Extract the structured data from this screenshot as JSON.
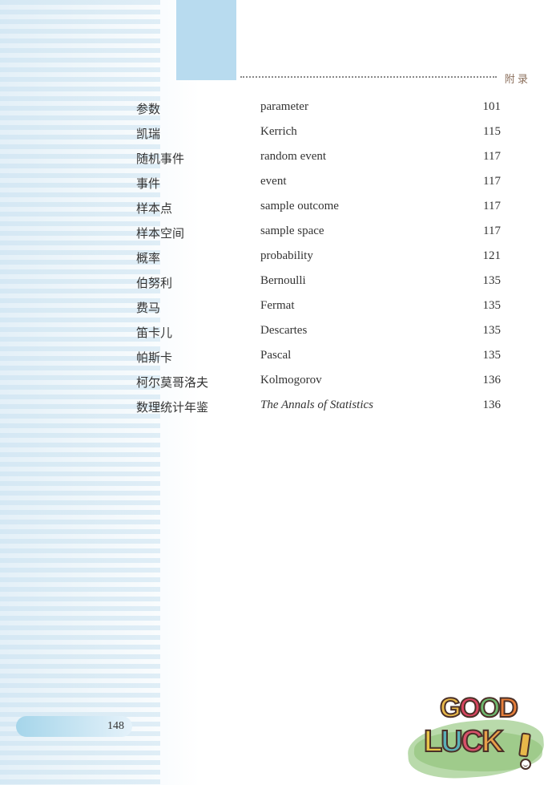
{
  "header": {
    "appendix_label": "附 录"
  },
  "page_number": "148",
  "index": {
    "rows": [
      {
        "cn": "参数",
        "en": "parameter",
        "pg": "101",
        "italic": false
      },
      {
        "cn": "凯瑞",
        "en": "Kerrich",
        "pg": "115",
        "italic": false
      },
      {
        "cn": "随机事件",
        "en": "random event",
        "pg": "117",
        "italic": false
      },
      {
        "cn": "事件",
        "en": "event",
        "pg": "117",
        "italic": false
      },
      {
        "cn": "样本点",
        "en": "sample outcome",
        "pg": "117",
        "italic": false
      },
      {
        "cn": "样本空间",
        "en": "sample space",
        "pg": "117",
        "italic": false
      },
      {
        "cn": "概率",
        "en": "probability",
        "pg": "121",
        "italic": false
      },
      {
        "cn": "伯努利",
        "en": "Bernoulli",
        "pg": "135",
        "italic": false
      },
      {
        "cn": "费马",
        "en": "Fermat",
        "pg": "135",
        "italic": false
      },
      {
        "cn": "笛卡儿",
        "en": "Descartes",
        "pg": "135",
        "italic": false
      },
      {
        "cn": "帕斯卡",
        "en": "Pascal",
        "pg": "135",
        "italic": false
      },
      {
        "cn": "柯尔莫哥洛夫",
        "en": "Kolmogorov",
        "pg": "136",
        "italic": false
      },
      {
        "cn": "数理统计年鉴",
        "en": "The Annals of Statistics",
        "pg": "136",
        "italic": true
      }
    ]
  },
  "decoration": {
    "good": [
      "G",
      "O",
      "O",
      "D"
    ],
    "luck": [
      "L",
      "U",
      "C",
      "K"
    ]
  },
  "colors": {
    "stripe": "#d5e8f3",
    "tab": "#b8dbef",
    "brush": "#a2ce8f",
    "page_tab": "#a5d5ea"
  }
}
